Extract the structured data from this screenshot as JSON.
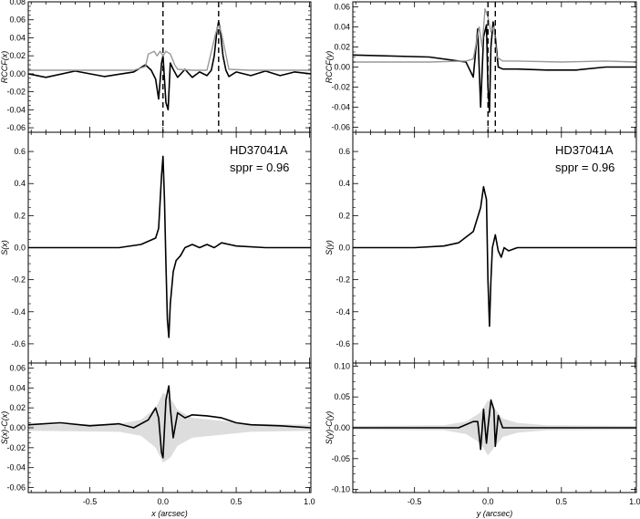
{
  "chart_data": [
    {
      "id": "left-top",
      "type": "line",
      "ylabel": "RCCF(x)",
      "xlim": [
        -0.92,
        1.01
      ],
      "ylim": [
        -0.065,
        0.08
      ],
      "yticks": [
        -0.06,
        -0.04,
        -0.02,
        0.0,
        0.02,
        0.04,
        0.06,
        0.08
      ],
      "ytick_labels": [
        "-0.06",
        "-0.04",
        "-0.02",
        "0.00",
        "0.02",
        "0.04",
        "0.06",
        "0.08"
      ],
      "vlines": [
        0.0,
        0.38
      ],
      "series": [
        {
          "color": "#000000",
          "x": [
            -0.92,
            -0.8,
            -0.6,
            -0.4,
            -0.2,
            -0.12,
            -0.08,
            -0.05,
            -0.03,
            -0.01,
            0.0,
            0.02,
            0.035,
            0.05,
            0.07,
            0.1,
            0.15,
            0.2,
            0.25,
            0.3,
            0.33,
            0.35,
            0.37,
            0.38,
            0.39,
            0.41,
            0.43,
            0.45,
            0.5,
            0.6,
            0.7,
            0.8,
            0.9,
            1.01
          ],
          "y": [
            0.0,
            -0.004,
            0.003,
            -0.003,
            0.002,
            0.01,
            0.004,
            -0.006,
            -0.028,
            0.012,
            0.02,
            -0.032,
            -0.04,
            0.012,
            0.005,
            -0.004,
            0.005,
            -0.004,
            0.002,
            -0.002,
            0.004,
            0.02,
            0.05,
            0.058,
            0.05,
            0.02,
            0.004,
            -0.003,
            0.002,
            -0.002,
            0.003,
            -0.002,
            0.002,
            0.0
          ]
        },
        {
          "color": "#999999",
          "x": [
            -0.92,
            -0.5,
            -0.2,
            -0.12,
            -0.1,
            -0.06,
            -0.04,
            -0.02,
            0.0,
            0.02,
            0.05,
            0.08,
            0.1,
            0.2,
            0.3,
            0.36,
            0.38,
            0.4,
            0.45,
            0.6,
            0.8,
            1.01
          ],
          "y": [
            0.004,
            0.004,
            0.004,
            0.008,
            0.022,
            0.025,
            0.02,
            0.025,
            0.02,
            0.025,
            0.022,
            0.01,
            0.005,
            0.004,
            0.004,
            0.045,
            0.055,
            0.045,
            0.005,
            0.004,
            0.004,
            0.004
          ]
        }
      ]
    },
    {
      "id": "left-mid",
      "type": "line",
      "ylabel": "S(x)",
      "title": "HD37041A",
      "subtitle": "sppr = 0.96",
      "xlim": [
        -0.92,
        1.01
      ],
      "ylim": [
        -0.72,
        0.72
      ],
      "yticks": [
        -0.6,
        -0.4,
        -0.2,
        0.0,
        0.2,
        0.4,
        0.6
      ],
      "ytick_labels": [
        "-0.6",
        "-0.4",
        "-0.2",
        "0.0",
        "0.2",
        "0.4",
        "0.6"
      ],
      "series": [
        {
          "color": "#000000",
          "x": [
            -0.92,
            -0.5,
            -0.3,
            -0.15,
            -0.1,
            -0.05,
            -0.03,
            -0.01,
            0.0,
            0.01,
            0.02,
            0.03,
            0.04,
            0.05,
            0.07,
            0.09,
            0.12,
            0.15,
            0.2,
            0.25,
            0.3,
            0.35,
            0.4,
            0.5,
            0.7,
            1.01
          ],
          "y": [
            0.0,
            0.0,
            0.0,
            0.02,
            0.04,
            0.06,
            0.12,
            0.45,
            0.57,
            0.3,
            -0.1,
            -0.45,
            -0.56,
            -0.35,
            -0.15,
            -0.08,
            -0.05,
            0.0,
            0.02,
            0.0,
            0.02,
            0.0,
            0.03,
            0.01,
            0.0,
            0.0
          ]
        }
      ]
    },
    {
      "id": "left-bot",
      "type": "line",
      "ylabel": "S(x)-C(x)",
      "xlabel": "x (arcsec)",
      "xlim": [
        -0.92,
        1.01
      ],
      "ylim": [
        -0.065,
        0.065
      ],
      "yticks": [
        -0.06,
        -0.04,
        -0.02,
        0.0,
        0.02,
        0.04,
        0.06
      ],
      "ytick_labels": [
        "-0.06",
        "-0.04",
        "-0.02",
        "0.00",
        "0.02",
        "0.04",
        "0.06"
      ],
      "xticks": [
        -0.5,
        0.0,
        0.5,
        1.0
      ],
      "xtick_labels": [
        "-0.5",
        "0.0",
        "0.5",
        "1.0"
      ],
      "band": {
        "x": [
          -0.92,
          -0.3,
          -0.15,
          -0.05,
          0.0,
          0.05,
          0.1,
          0.2,
          0.4,
          0.6,
          1.01
        ],
        "half": [
          0.003,
          0.004,
          0.008,
          0.02,
          0.035,
          0.03,
          0.018,
          0.01,
          0.007,
          0.004,
          0.003
        ],
        "color": "#dddddd"
      },
      "series": [
        {
          "color": "#000000",
          "x": [
            -0.92,
            -0.7,
            -0.5,
            -0.3,
            -0.2,
            -0.1,
            -0.05,
            -0.03,
            -0.01,
            0.0,
            0.02,
            0.04,
            0.05,
            0.07,
            0.1,
            0.15,
            0.2,
            0.3,
            0.4,
            0.5,
            0.6,
            0.8,
            1.01
          ],
          "y": [
            0.003,
            0.005,
            0.002,
            0.004,
            0.0,
            0.008,
            0.02,
            0.01,
            -0.025,
            -0.03,
            0.028,
            0.042,
            0.02,
            -0.01,
            0.015,
            0.01,
            0.013,
            0.012,
            0.01,
            0.005,
            0.003,
            0.002,
            0.0
          ]
        }
      ]
    },
    {
      "id": "right-top",
      "type": "line",
      "ylabel": "RCCF(y)",
      "xlim": [
        -0.92,
        1.01
      ],
      "ylim": [
        -0.065,
        0.065
      ],
      "yticks": [
        -0.06,
        -0.04,
        -0.02,
        0.0,
        0.02,
        0.04,
        0.06
      ],
      "ytick_labels": [
        "-0.06",
        "-0.04",
        "-0.02",
        "0.00",
        "0.02",
        "0.04",
        "0.06"
      ],
      "vlines": [
        0.0,
        0.05
      ],
      "series": [
        {
          "color": "#000000",
          "x": [
            -0.92,
            -0.4,
            -0.15,
            -0.1,
            -0.07,
            -0.05,
            -0.03,
            -0.01,
            0.0,
            0.01,
            0.02,
            0.035,
            0.05,
            0.07,
            0.1,
            0.2,
            0.4,
            0.6,
            0.8,
            1.01
          ],
          "y": [
            0.012,
            0.01,
            0.005,
            -0.01,
            0.038,
            -0.04,
            0.03,
            0.042,
            -0.02,
            -0.045,
            0.02,
            0.045,
            0.03,
            0.0,
            -0.002,
            -0.002,
            -0.003,
            -0.003,
            0.0,
            0.0
          ]
        },
        {
          "color": "#999999",
          "x": [
            -0.92,
            -0.4,
            -0.15,
            -0.1,
            -0.06,
            -0.04,
            -0.02,
            0.0,
            0.02,
            0.04,
            0.06,
            0.1,
            0.2,
            0.5,
            0.8,
            1.01
          ],
          "y": [
            0.005,
            0.005,
            0.006,
            0.008,
            0.04,
            0.02,
            0.058,
            0.05,
            0.035,
            0.04,
            0.01,
            0.006,
            0.006,
            0.005,
            0.006,
            0.005
          ]
        }
      ]
    },
    {
      "id": "right-mid",
      "type": "line",
      "ylabel": "S(y)",
      "title": "HD37041A",
      "subtitle": "sppr = 0.96",
      "xlim": [
        -0.92,
        1.01
      ],
      "ylim": [
        -0.72,
        0.72
      ],
      "yticks": [
        -0.6,
        -0.4,
        -0.2,
        0.0,
        0.2,
        0.4,
        0.6
      ],
      "ytick_labels": [
        "-0.6",
        "-0.4",
        "-0.2",
        "0.0",
        "0.2",
        "0.4",
        "0.6"
      ],
      "series": [
        {
          "color": "#000000",
          "x": [
            -0.92,
            -0.5,
            -0.3,
            -0.2,
            -0.1,
            -0.05,
            -0.03,
            -0.01,
            0.0,
            0.01,
            0.02,
            0.03,
            0.05,
            0.07,
            0.09,
            0.11,
            0.14,
            0.2,
            0.3,
            0.5,
            0.7,
            1.01
          ],
          "y": [
            0.0,
            0.0,
            0.01,
            0.03,
            0.1,
            0.25,
            0.38,
            0.3,
            -0.2,
            -0.49,
            -0.2,
            0.0,
            0.08,
            -0.02,
            -0.06,
            0.0,
            -0.02,
            0.0,
            0.0,
            0.0,
            0.0,
            0.0
          ]
        }
      ]
    },
    {
      "id": "right-bot",
      "type": "line",
      "ylabel": "S(y)-C(y)",
      "xlabel": "y (arcsec)",
      "xlim": [
        -0.92,
        1.01
      ],
      "ylim": [
        -0.105,
        0.105
      ],
      "yticks": [
        -0.1,
        -0.05,
        0.0,
        0.05,
        0.1
      ],
      "ytick_labels": [
        "-0.10",
        "-0.05",
        "0.00",
        "0.05",
        "0.10"
      ],
      "xticks": [
        -0.5,
        0.0,
        0.5,
        1.0
      ],
      "xtick_labels": [
        "-0.5",
        "0.0",
        "0.5",
        "1.0"
      ],
      "band": {
        "x": [
          -0.92,
          -0.3,
          -0.15,
          -0.05,
          0.0,
          0.05,
          0.1,
          0.2,
          0.4,
          1.01
        ],
        "half": [
          0.003,
          0.004,
          0.01,
          0.025,
          0.045,
          0.03,
          0.015,
          0.008,
          0.004,
          0.003
        ],
        "color": "#dddddd"
      },
      "series": [
        {
          "color": "#000000",
          "x": [
            -0.92,
            -0.5,
            -0.2,
            -0.1,
            -0.07,
            -0.05,
            -0.03,
            -0.01,
            0.0,
            0.02,
            0.04,
            0.05,
            0.07,
            0.1,
            0.2,
            0.5,
            1.01
          ],
          "y": [
            0.0,
            0.0,
            0.0,
            0.01,
            0.01,
            -0.035,
            0.03,
            -0.025,
            0.0,
            0.045,
            0.03,
            -0.03,
            0.02,
            0.0,
            0.0,
            0.0,
            0.0
          ]
        }
      ]
    }
  ]
}
